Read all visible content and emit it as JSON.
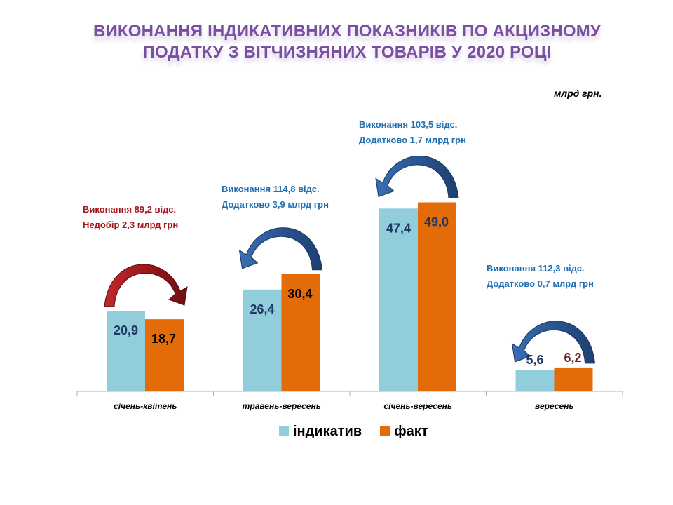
{
  "title_lines": [
    "ВИКОНАННЯ ІНДИКАТИВНИХ ПОКАЗНИКІВ ПО АКЦИЗНОМУ",
    "ПОДАТКУ З ВІТЧИЗНЯНИХ ТОВАРІВ У 2020 РОЦІ"
  ],
  "unit_label": "млрд грн.",
  "colors": {
    "title": "#7a4fa3",
    "indicative": "#92cddc",
    "fact": "#e36c09",
    "positive_note": "#1f6fb2",
    "negative_note": "#a5161b",
    "arrow_blue": "#2f5f9e",
    "arrow_red": "#a5161b"
  },
  "chart_data": {
    "type": "bar",
    "categories": [
      "січень-квітень",
      "травень-вересень",
      "січень-вересень",
      "вересень"
    ],
    "series": [
      {
        "name": "індикатив",
        "values": [
          20.9,
          26.4,
          47.4,
          5.6
        ],
        "labels": [
          "20,9",
          "26,4",
          "47,4",
          "5,6"
        ]
      },
      {
        "name": "факт",
        "values": [
          18.7,
          30.4,
          49.0,
          6.2
        ],
        "labels": [
          "18,7",
          "30,4",
          "49,0",
          "6,2"
        ]
      }
    ],
    "ylim": [
      0,
      50
    ],
    "grid": false,
    "legend_position": "bottom"
  },
  "annotations": [
    {
      "line1": "Виконання  89,2 відс.",
      "line2": "Недобір 2,3  млрд грн",
      "tone": "negative"
    },
    {
      "line1": "Виконання  114,8 відс.",
      "line2": "Додатково 3,9  млрд грн",
      "tone": "positive"
    },
    {
      "line1": "Виконання  103,5 відс.",
      "line2": "Додатково 1,7  млрд грн",
      "tone": "positive"
    },
    {
      "line1": "Виконання  112,3 відс.",
      "line2": "Додатково 0,7  млрд грн",
      "tone": "positive"
    }
  ]
}
